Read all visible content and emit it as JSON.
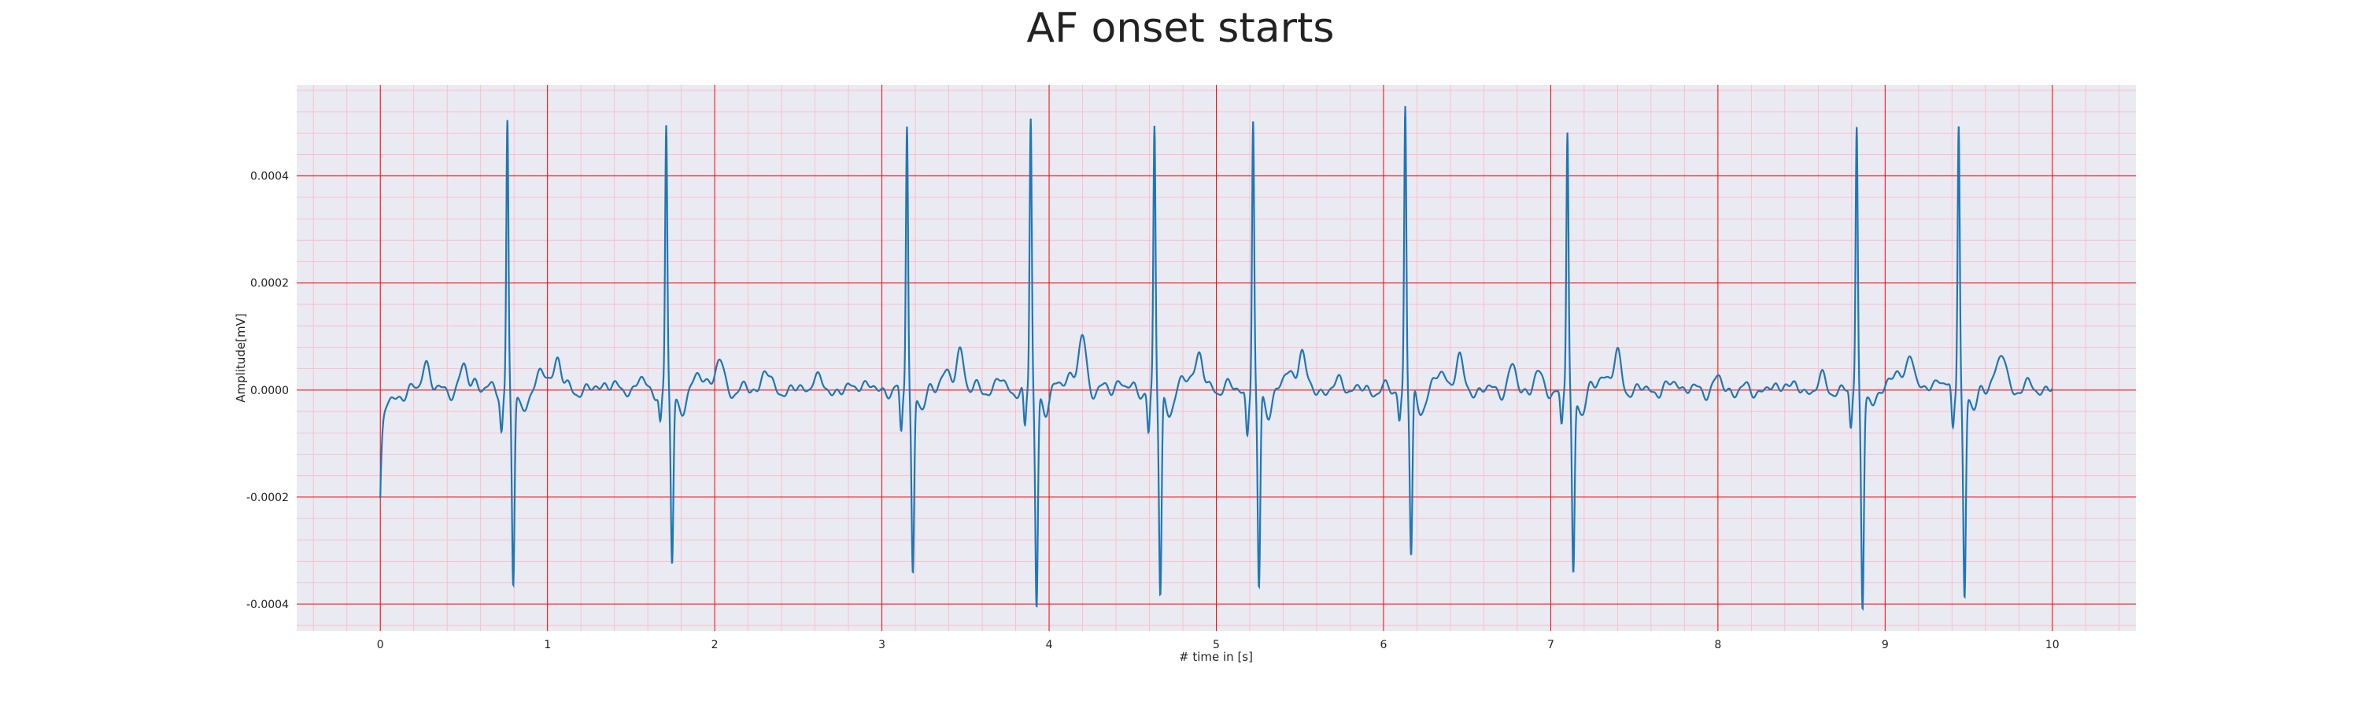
{
  "chart_data": {
    "type": "line",
    "title": "AF onset starts",
    "xlabel": "# time in [s]",
    "ylabel": "Amplitude[mV]",
    "xlim": [
      -0.5,
      10.5
    ],
    "ylim": [
      -0.00045,
      0.00057
    ],
    "xticks": [
      0,
      1,
      2,
      3,
      4,
      5,
      6,
      7,
      8,
      9,
      10
    ],
    "xtick_labels": [
      "0",
      "1",
      "2",
      "3",
      "4",
      "5",
      "6",
      "7",
      "8",
      "9",
      "10"
    ],
    "yticks": [
      -0.0004,
      -0.0002,
      0.0,
      0.0002,
      0.0004
    ],
    "ytick_labels": [
      "-0.0004",
      "-0.0002",
      "0.0000",
      "0.0002",
      "0.0004"
    ],
    "grid": true,
    "grid_major_color": "#ff0000",
    "grid_minor_color": "#ffb6c1",
    "background_color": "#eaeaf2",
    "line_color": "#1f77b4",
    "series": [
      {
        "beats": [
          {
            "t": 0.76,
            "r": 0.000505,
            "s": -0.00037,
            "q": -7e-05
          },
          {
            "t": 1.71,
            "r": 0.000488,
            "s": -0.000325,
            "q": -6e-05
          },
          {
            "t": 3.15,
            "r": 0.000505,
            "s": -0.00034,
            "q": -9e-05
          },
          {
            "t": 3.89,
            "r": 0.000505,
            "s": -0.000398,
            "q": -8e-05
          },
          {
            "t": 4.63,
            "r": 0.000485,
            "s": -0.000385,
            "q": -8e-05
          },
          {
            "t": 5.22,
            "r": 0.000503,
            "s": -0.00038,
            "q": -8e-05
          },
          {
            "t": 6.13,
            "r": 0.00053,
            "s": -0.000315,
            "q": -5e-05
          },
          {
            "t": 7.1,
            "r": 0.00048,
            "s": -0.000345,
            "q": -7e-05
          },
          {
            "t": 8.83,
            "r": 0.000495,
            "s": -0.000395,
            "q": -8e-05
          },
          {
            "t": 9.44,
            "r": 0.000505,
            "s": -0.000385,
            "q": -8e-05
          }
        ],
        "waves": [
          {
            "t": 0.27,
            "a": 6e-05
          },
          {
            "t": 0.5,
            "a": 4e-05
          },
          {
            "t": 0.57,
            "a": 2e-05
          },
          {
            "t": 1.06,
            "a": 6e-05
          },
          {
            "t": 1.35,
            "a": 2e-05
          },
          {
            "t": 1.55,
            "a": 2e-05
          },
          {
            "t": 2.03,
            "a": 5.5e-05
          },
          {
            "t": 2.3,
            "a": 4e-05
          },
          {
            "t": 2.6,
            "a": 3e-05
          },
          {
            "t": 2.88,
            "a": 2e-05
          },
          {
            "t": 3.47,
            "a": 8e-05
          },
          {
            "t": 3.7,
            "a": 2e-05
          },
          {
            "t": 4.2,
            "a": 0.0001
          },
          {
            "t": 4.42,
            "a": 2e-05
          },
          {
            "t": 4.9,
            "a": 5.5e-05
          },
          {
            "t": 5.05,
            "a": 1e-05
          },
          {
            "t": 5.51,
            "a": 7e-05
          },
          {
            "t": 5.75,
            "a": 2e-05
          },
          {
            "t": 6.45,
            "a": 6e-05
          },
          {
            "t": 6.77,
            "a": 4e-05
          },
          {
            "t": 6.92,
            "a": 3e-05
          },
          {
            "t": 7.4,
            "a": 6e-05
          },
          {
            "t": 7.75,
            "a": 2e-05
          },
          {
            "t": 8.0,
            "a": 2e-05
          },
          {
            "t": 8.4,
            "a": 2e-05
          },
          {
            "t": 8.62,
            "a": 2e-05
          },
          {
            "t": 9.15,
            "a": 8e-05
          },
          {
            "t": 9.32,
            "a": 3e-05
          },
          {
            "t": 9.71,
            "a": 5e-05
          },
          {
            "t": 9.88,
            "a": 1e-05
          }
        ],
        "start": {
          "t": 0.0,
          "y": -0.00021
        }
      }
    ]
  }
}
